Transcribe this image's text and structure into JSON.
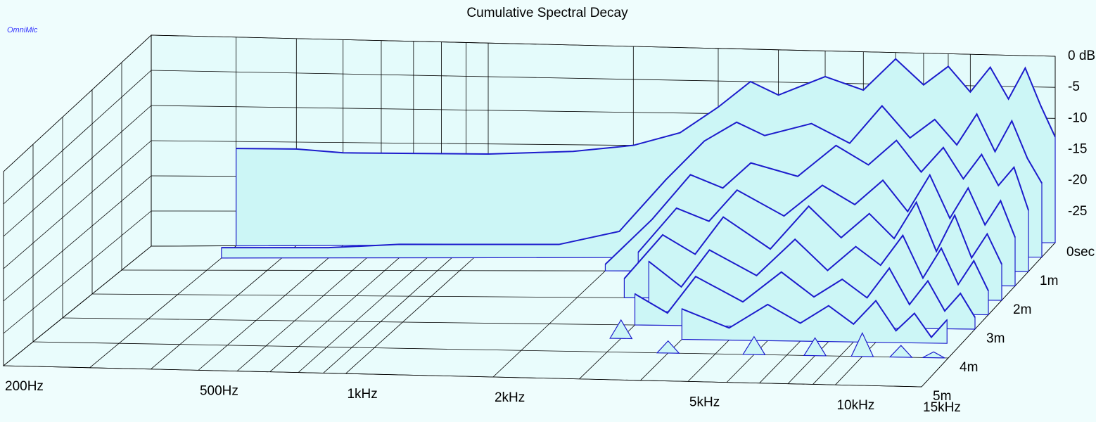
{
  "chart_data": {
    "type": "waterfall",
    "title": "Cumulative Spectral Decay",
    "brand": "OmniMic",
    "xscale": "log",
    "xlim": [
      200,
      15000
    ],
    "xticks": [
      {
        "value": 200,
        "label": "200Hz"
      },
      {
        "value": 500,
        "label": "500Hz"
      },
      {
        "value": 1000,
        "label": "1kHz"
      },
      {
        "value": 2000,
        "label": "2kHz"
      },
      {
        "value": 5000,
        "label": "5kHz"
      },
      {
        "value": 10000,
        "label": "10kHz"
      },
      {
        "value": 15000,
        "label": "15kHz"
      }
    ],
    "xminorticks": [
      300,
      400,
      600,
      700,
      800,
      900,
      3000,
      4000,
      6000,
      7000,
      8000,
      9000
    ],
    "zlim": [
      -30,
      0
    ],
    "zticks": [
      {
        "value": 0,
        "label": "0 dB"
      },
      {
        "value": -5,
        "label": "-5"
      },
      {
        "value": -10,
        "label": "-10"
      },
      {
        "value": -15,
        "label": "-15"
      },
      {
        "value": -20,
        "label": "-20"
      },
      {
        "value": -25,
        "label": "-25"
      }
    ],
    "tlim": [
      0,
      5
    ],
    "tticks": [
      {
        "value": 0,
        "label": "0sec"
      },
      {
        "value": 1,
        "label": "1m"
      },
      {
        "value": 2,
        "label": "2m"
      },
      {
        "value": 3,
        "label": "3m"
      },
      {
        "value": 4,
        "label": "4m"
      },
      {
        "value": 5,
        "label": "5m"
      }
    ],
    "grid": true,
    "fill_color": "#ccf6f6",
    "line_color": "#1c1ccc",
    "x": [
      200,
      300,
      400,
      500,
      700,
      1000,
      1500,
      2000,
      2500,
      3000,
      3500,
      4000,
      5000,
      6000,
      7000,
      8000,
      9000,
      10000,
      11000,
      12000,
      13000,
      14000,
      15000
    ],
    "series": [
      {
        "time": 0,
        "values": [
          null,
          -16,
          -16,
          -16.5,
          -16.5,
          -16.5,
          -16,
          -15,
          -13,
          -9,
          -5,
          -7,
          -4,
          -6,
          -1,
          -5,
          -2,
          -6,
          -2,
          -7,
          -2,
          -8,
          -13
        ]
      },
      {
        "time": 0.5,
        "values": [
          null,
          -28.5,
          -28.5,
          -28.5,
          -28,
          -28,
          -28,
          -26,
          -18,
          -12,
          -9,
          -11,
          -9,
          -12,
          -6,
          -11,
          -8,
          -12,
          -7,
          -13,
          -8,
          -14,
          -18
        ]
      },
      {
        "time": 1,
        "values": [
          null,
          null,
          null,
          null,
          null,
          null,
          null,
          -29,
          -22,
          -15,
          -17,
          -13,
          -15,
          -10,
          -13,
          -9,
          -14,
          -10,
          -15,
          -11,
          -16,
          -13,
          -20
        ]
      },
      {
        "time": 1.5,
        "values": [
          null,
          null,
          null,
          null,
          null,
          null,
          null,
          null,
          -25,
          -18,
          -20,
          -15,
          -19,
          -14,
          -17,
          -13,
          -18,
          -12,
          -19,
          -14,
          -20,
          -16,
          -22
        ]
      },
      {
        "time": 2,
        "values": [
          null,
          null,
          null,
          null,
          null,
          null,
          null,
          null,
          -27,
          -20,
          -23,
          -17,
          -22,
          -15,
          -20,
          -16,
          -20,
          -14,
          -22,
          -16,
          -23,
          -19,
          -24
        ]
      },
      {
        "time": 2.5,
        "values": [
          null,
          null,
          null,
          null,
          null,
          null,
          null,
          null,
          null,
          -22,
          -26,
          -20,
          -24,
          -18,
          -23,
          -19,
          -22,
          -17,
          -24,
          -19,
          -25,
          -21,
          -26
        ]
      },
      {
        "time": 3,
        "values": [
          null,
          null,
          null,
          null,
          null,
          null,
          null,
          null,
          null,
          -25,
          -28,
          -22,
          -26,
          -21,
          -25,
          -22,
          -25,
          -20,
          -26,
          -22,
          -27,
          -24,
          -28
        ]
      },
      {
        "time": 3.5,
        "values": [
          null,
          null,
          null,
          null,
          null,
          null,
          null,
          null,
          null,
          -27,
          null,
          -25,
          -28,
          -24,
          -27,
          -24,
          -27,
          -23,
          -28,
          -25,
          -29,
          -26,
          null
        ]
      },
      {
        "time": 4,
        "values": [
          null,
          null,
          null,
          null,
          null,
          null,
          null,
          null,
          null,
          null,
          null,
          -28,
          null,
          -27,
          null,
          -27,
          null,
          -26,
          null,
          -28,
          null,
          -29,
          null
        ]
      }
    ]
  }
}
